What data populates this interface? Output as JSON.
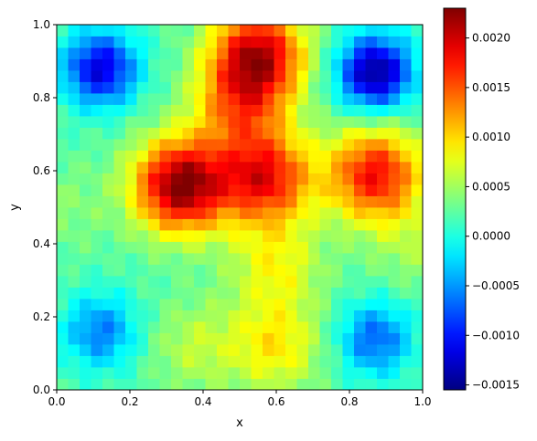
{
  "chart_data": {
    "type": "heatmap",
    "xlabel": "x",
    "ylabel": "y",
    "xlim": [
      0,
      1
    ],
    "ylim": [
      0,
      1
    ],
    "grid": false,
    "grid_resolution": [
      32,
      32
    ],
    "colormap": "jet",
    "colorbar": {
      "vmin": -0.00155,
      "vmax": 0.0023,
      "ticks": [
        -0.0015,
        -0.001,
        -0.0005,
        0.0,
        0.0005,
        0.001,
        0.0015,
        0.002
      ],
      "tick_labels": [
        "−0.0015",
        "−0.0010",
        "−0.0005",
        "0.0000",
        "0.0005",
        "0.0010",
        "0.0015",
        "0.0020"
      ],
      "placement": "right"
    },
    "x_ticks": [
      0.0,
      0.2,
      0.4,
      0.6,
      0.8,
      1.0
    ],
    "x_tick_labels": [
      "0.0",
      "0.2",
      "0.4",
      "0.6",
      "0.8",
      "1.0"
    ],
    "y_ticks": [
      0.0,
      0.2,
      0.4,
      0.6,
      0.8,
      1.0
    ],
    "y_tick_labels": [
      "0.0",
      "0.2",
      "0.4",
      "0.6",
      "0.8",
      "1.0"
    ],
    "baseline": 0.0002,
    "features": [
      {
        "kind": "negative minimum",
        "x": 0.12,
        "y": 0.88,
        "value": -0.0012
      },
      {
        "kind": "negative minimum",
        "x": 0.87,
        "y": 0.87,
        "value": -0.0015
      },
      {
        "kind": "negative minimum",
        "x": 0.12,
        "y": 0.16,
        "value": -0.0006
      },
      {
        "kind": "negative minimum",
        "x": 0.87,
        "y": 0.14,
        "value": -0.0007
      },
      {
        "kind": "positive maximum",
        "x": 0.34,
        "y": 0.56,
        "value": 0.0023
      },
      {
        "kind": "positive maximum",
        "x": 0.55,
        "y": 0.92,
        "value": 0.002
      },
      {
        "kind": "positive maximum",
        "x": 0.57,
        "y": 0.58,
        "value": 0.0018
      },
      {
        "kind": "positive maximum",
        "x": 0.87,
        "y": 0.59,
        "value": 0.0018
      },
      {
        "kind": "positive ridge",
        "x": 0.5,
        "y": 0.78,
        "value": 0.0012
      },
      {
        "kind": "positive ridge",
        "x": 0.6,
        "y": 0.34,
        "value": 0.0008
      },
      {
        "kind": "positive ridge",
        "x": 0.6,
        "y": 0.12,
        "value": 0.0009
      },
      {
        "kind": "positive ridge",
        "x": 0.38,
        "y": 0.12,
        "value": 0.0006
      },
      {
        "kind": "positive ridge",
        "x": 0.02,
        "y": 0.5,
        "value": 0.0004
      },
      {
        "kind": "positive ridge",
        "x": 0.98,
        "y": 0.4,
        "value": 0.0005
      }
    ]
  }
}
